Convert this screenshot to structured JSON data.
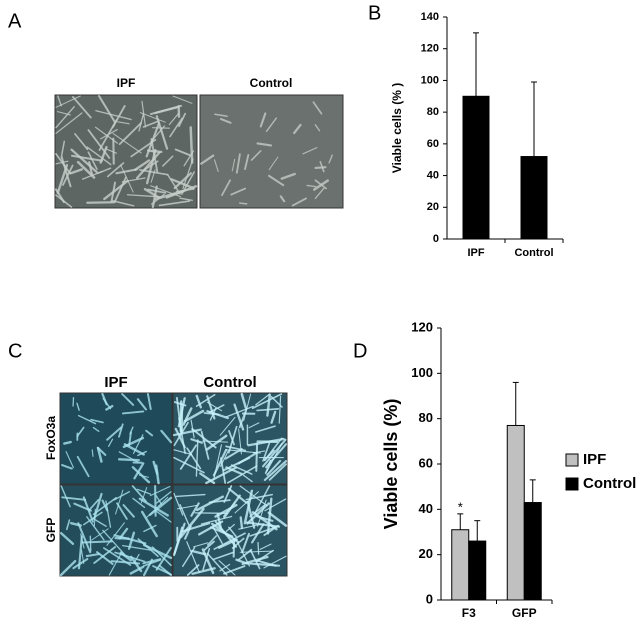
{
  "panels": {
    "labels": [
      "A",
      "B",
      "C",
      "D"
    ]
  },
  "micrographs_a": {
    "columns": [
      "IPF",
      "Control"
    ]
  },
  "micrographs_c": {
    "columns": [
      "IPF",
      "Control"
    ],
    "rows": [
      "FoxO3a",
      "GFP"
    ]
  },
  "chart_data": [
    {
      "type": "bar",
      "y_label": "Viable cells (% )",
      "categories": [
        "IPF",
        "Control"
      ],
      "values": [
        90,
        52
      ],
      "errors": [
        40,
        47
      ],
      "color": "#000000",
      "ylim": [
        0,
        140
      ],
      "yticks": [
        0,
        20,
        40,
        60,
        80,
        100,
        120,
        140
      ]
    },
    {
      "type": "grouped_bar",
      "y_label": "Viable cells (%)",
      "categories": [
        "F3",
        "GFP"
      ],
      "series": [
        {
          "name": "IPF",
          "color": "#c0c0c0",
          "values": [
            31,
            77
          ],
          "errors": [
            7,
            19
          ]
        },
        {
          "name": "Control",
          "color": "#000000",
          "values": [
            26,
            43
          ],
          "errors": [
            9,
            10
          ]
        }
      ],
      "annotations": [
        "*"
      ],
      "ylim": [
        0,
        120
      ],
      "yticks": [
        0,
        20,
        40,
        60,
        80,
        100,
        120
      ]
    }
  ]
}
